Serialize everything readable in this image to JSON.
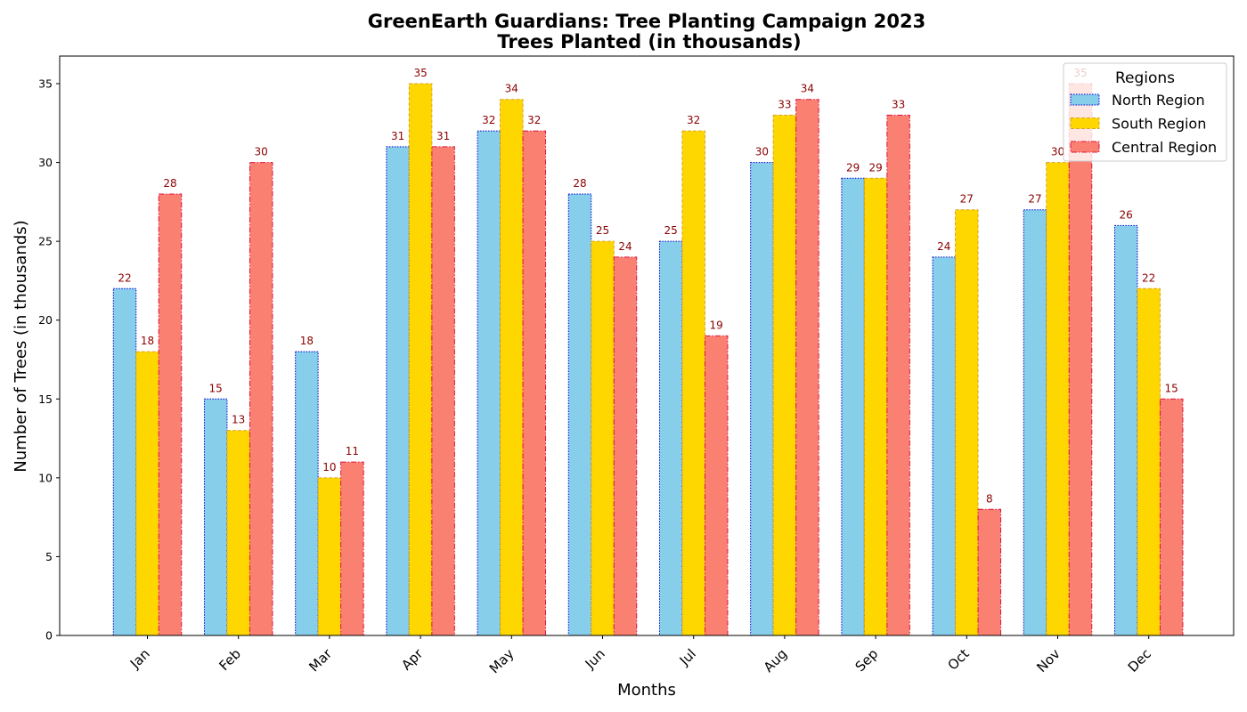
{
  "chart_data": {
    "type": "bar",
    "title": "GreenEarth Guardians: Tree Planting Campaign 2023",
    "subtitle": "Trees Planted (in thousands)",
    "xlabel": "Months",
    "ylabel": "Number of Trees (in thousands)",
    "ylim": [
      0,
      36.75
    ],
    "yticks": [
      0,
      5,
      10,
      15,
      20,
      25,
      30,
      35
    ],
    "grid": false,
    "legend_title": "Regions",
    "legend_position": "top-right",
    "categories": [
      "Jan",
      "Feb",
      "Mar",
      "Apr",
      "May",
      "Jun",
      "Jul",
      "Aug",
      "Sep",
      "Oct",
      "Nov",
      "Dec"
    ],
    "series": [
      {
        "name": "North Region",
        "color": "#87ceeb",
        "edge_color": "#0000cd",
        "edge_style": "dotted",
        "values": [
          22,
          15,
          18,
          31,
          32,
          28,
          25,
          30,
          29,
          24,
          27,
          26
        ]
      },
      {
        "name": "South Region",
        "color": "#ffd700",
        "edge_color": "#daa520",
        "edge_style": "dashed",
        "values": [
          18,
          13,
          10,
          35,
          34,
          25,
          32,
          33,
          29,
          27,
          30,
          22
        ]
      },
      {
        "name": "Central Region",
        "color": "#fa8072",
        "edge_color": "#dc143c",
        "edge_style": "dashdot",
        "values": [
          28,
          30,
          11,
          31,
          32,
          24,
          19,
          34,
          33,
          8,
          35,
          15
        ]
      }
    ],
    "value_label_color": "#8b0000"
  }
}
